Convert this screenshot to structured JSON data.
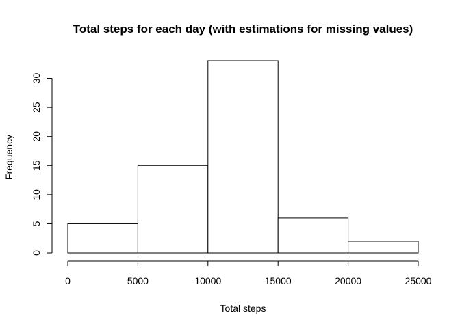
{
  "chart_data": {
    "type": "bar",
    "title": "Total steps for each day (with estimations for missing values)",
    "xlabel": "Total steps",
    "ylabel": "Frequency",
    "bins": [
      {
        "start": 0,
        "end": 5000,
        "count": 5
      },
      {
        "start": 5000,
        "end": 10000,
        "count": 15
      },
      {
        "start": 10000,
        "end": 15000,
        "count": 33
      },
      {
        "start": 15000,
        "end": 20000,
        "count": 6
      },
      {
        "start": 20000,
        "end": 25000,
        "count": 2
      }
    ],
    "xlim": [
      0,
      25000
    ],
    "ylim": [
      0,
      33
    ],
    "x_ticks": [
      0,
      5000,
      10000,
      15000,
      20000,
      25000
    ],
    "x_tick_labels": [
      "0",
      "5000",
      "10000",
      "15000",
      "20000",
      "25000"
    ],
    "y_ticks": [
      0,
      5,
      10,
      15,
      20,
      25,
      30
    ],
    "y_tick_labels": [
      "0",
      "5",
      "10",
      "15",
      "20",
      "25",
      "30"
    ],
    "grid": false,
    "legend": "none",
    "colors": {
      "bar_fill": "#ffffff",
      "bar_stroke": "#000000",
      "axis": "#000000",
      "text": "#000000"
    }
  }
}
